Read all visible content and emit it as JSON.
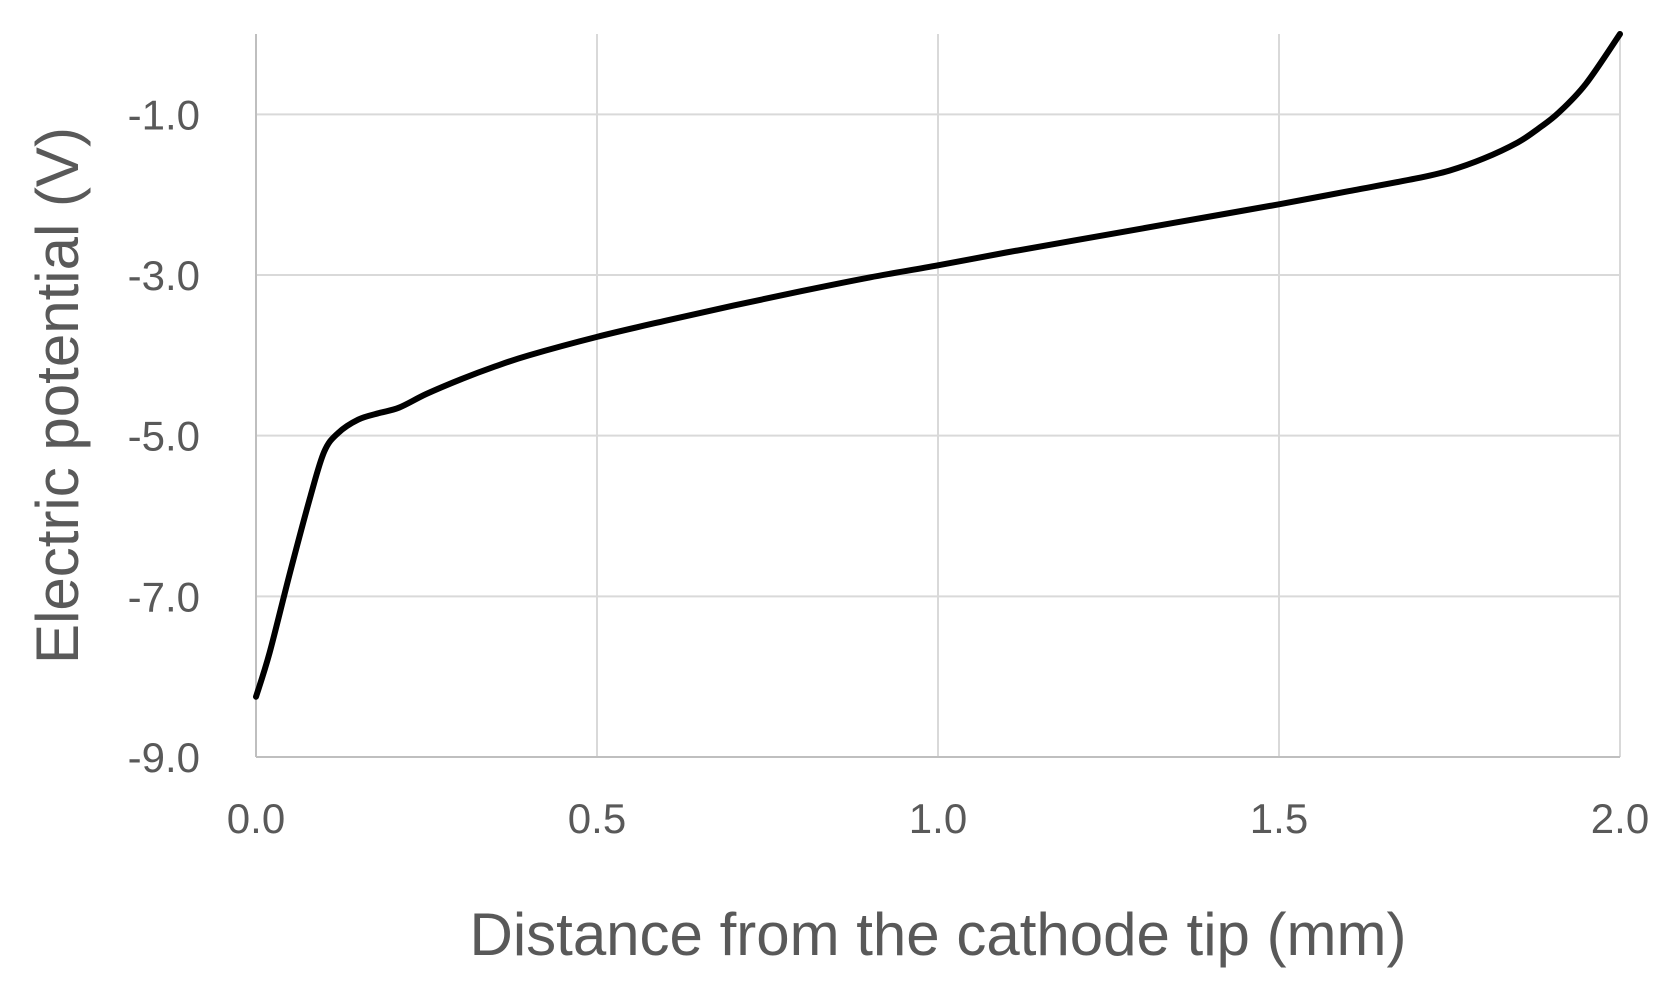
{
  "chart_data": {
    "type": "line",
    "title": "",
    "xlabel": "Distance from the cathode tip (mm)",
    "ylabel": "Electric potential (V)",
    "xlim": [
      0.0,
      2.0
    ],
    "ylim": [
      -9.0,
      0.0
    ],
    "x_ticks": [
      0.0,
      0.5,
      1.0,
      1.5,
      2.0
    ],
    "x_tick_labels": [
      "0.0",
      "0.5",
      "1.0",
      "1.5",
      "2.0"
    ],
    "y_ticks": [
      -9.0,
      -7.0,
      -5.0,
      -3.0,
      -1.0
    ],
    "y_tick_labels": [
      "-9.0",
      "-7.0",
      "-5.0",
      "-3.0",
      "-1.0"
    ],
    "grid": true,
    "legend": "none",
    "series": [
      {
        "color": "#000000",
        "x": [
          0.0,
          0.02,
          0.05,
          0.08,
          0.1,
          0.12,
          0.15,
          0.18,
          0.21,
          0.25,
          0.3,
          0.35,
          0.4,
          0.5,
          0.6,
          0.7,
          0.8,
          0.9,
          1.0,
          1.1,
          1.2,
          1.3,
          1.4,
          1.5,
          1.6,
          1.7,
          1.75,
          1.8,
          1.85,
          1.88,
          1.91,
          1.95,
          2.0
        ],
        "y": [
          -8.25,
          -7.7,
          -6.7,
          -5.75,
          -5.2,
          -4.97,
          -4.8,
          -4.72,
          -4.65,
          -4.48,
          -4.3,
          -4.14,
          -4.0,
          -3.77,
          -3.57,
          -3.38,
          -3.2,
          -3.03,
          -2.88,
          -2.72,
          -2.57,
          -2.42,
          -2.27,
          -2.12,
          -1.96,
          -1.8,
          -1.7,
          -1.55,
          -1.35,
          -1.18,
          -0.98,
          -0.62,
          -0.0
        ]
      }
    ]
  }
}
